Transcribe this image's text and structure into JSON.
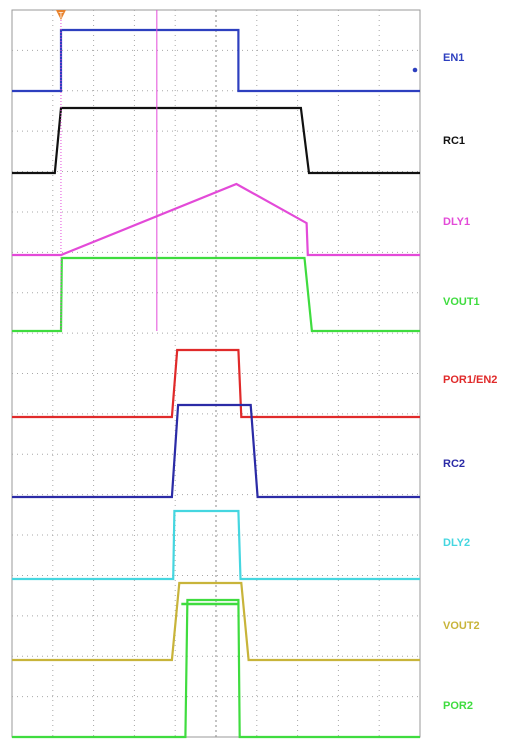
{
  "chart_data": {
    "type": "line",
    "title": "",
    "time_range": [
      0,
      10
    ],
    "grid": true,
    "trigger_marker": "T",
    "cursor_time": 3.55,
    "series": [
      {
        "name": "EN1",
        "color": "#2d3fbf",
        "points": [
          [
            0,
            0
          ],
          [
            1.2,
            0
          ],
          [
            1.2,
            1
          ],
          [
            5.55,
            1
          ],
          [
            5.55,
            0
          ],
          [
            10,
            0
          ]
        ]
      },
      {
        "name": "RC1",
        "color": "#111111",
        "points": [
          [
            0,
            0
          ],
          [
            1.05,
            0
          ],
          [
            1.2,
            1
          ],
          [
            7.08,
            1
          ],
          [
            7.28,
            0
          ],
          [
            10,
            0
          ]
        ]
      },
      {
        "name": "DLY1",
        "color": "#e34ad8",
        "points": [
          [
            0,
            0
          ],
          [
            1.2,
            0
          ],
          [
            5.5,
            1
          ],
          [
            7.22,
            0.45
          ],
          [
            7.25,
            0
          ],
          [
            10,
            0
          ]
        ]
      },
      {
        "name": "VOUT1",
        "color": "#3fdc3f",
        "points": [
          [
            0,
            0
          ],
          [
            1.2,
            0
          ],
          [
            1.22,
            1
          ],
          [
            7.17,
            1
          ],
          [
            7.35,
            0
          ],
          [
            10,
            0
          ]
        ]
      },
      {
        "name": "POR1/EN2",
        "color": "#e02a2a",
        "points": [
          [
            0,
            0
          ],
          [
            3.92,
            0
          ],
          [
            4.05,
            1
          ],
          [
            5.55,
            1
          ],
          [
            5.62,
            0
          ],
          [
            10,
            0
          ]
        ]
      },
      {
        "name": "RC2",
        "color": "#2b2ba6",
        "points": [
          [
            0,
            0
          ],
          [
            3.92,
            0
          ],
          [
            4.07,
            1
          ],
          [
            5.85,
            1
          ],
          [
            6.02,
            0
          ],
          [
            10,
            0
          ]
        ]
      },
      {
        "name": "DLY2",
        "color": "#45d6e0",
        "points": [
          [
            0,
            0
          ],
          [
            3.95,
            0
          ],
          [
            3.98,
            1
          ],
          [
            5.55,
            1
          ],
          [
            5.6,
            0
          ],
          [
            10,
            0
          ]
        ]
      },
      {
        "name": "VOUT2",
        "color": "#c8b43a",
        "points": [
          [
            0,
            0
          ],
          [
            3.92,
            0
          ],
          [
            4.1,
            1
          ],
          [
            5.62,
            1
          ],
          [
            5.8,
            0
          ],
          [
            10,
            0
          ]
        ]
      },
      {
        "name": "POR2",
        "color": "#3fdc3f",
        "points": [
          [
            0,
            0
          ],
          [
            4.25,
            0
          ],
          [
            4.3,
            1
          ],
          [
            5.55,
            1
          ],
          [
            5.58,
            0
          ],
          [
            10,
            0
          ]
        ]
      }
    ]
  }
}
